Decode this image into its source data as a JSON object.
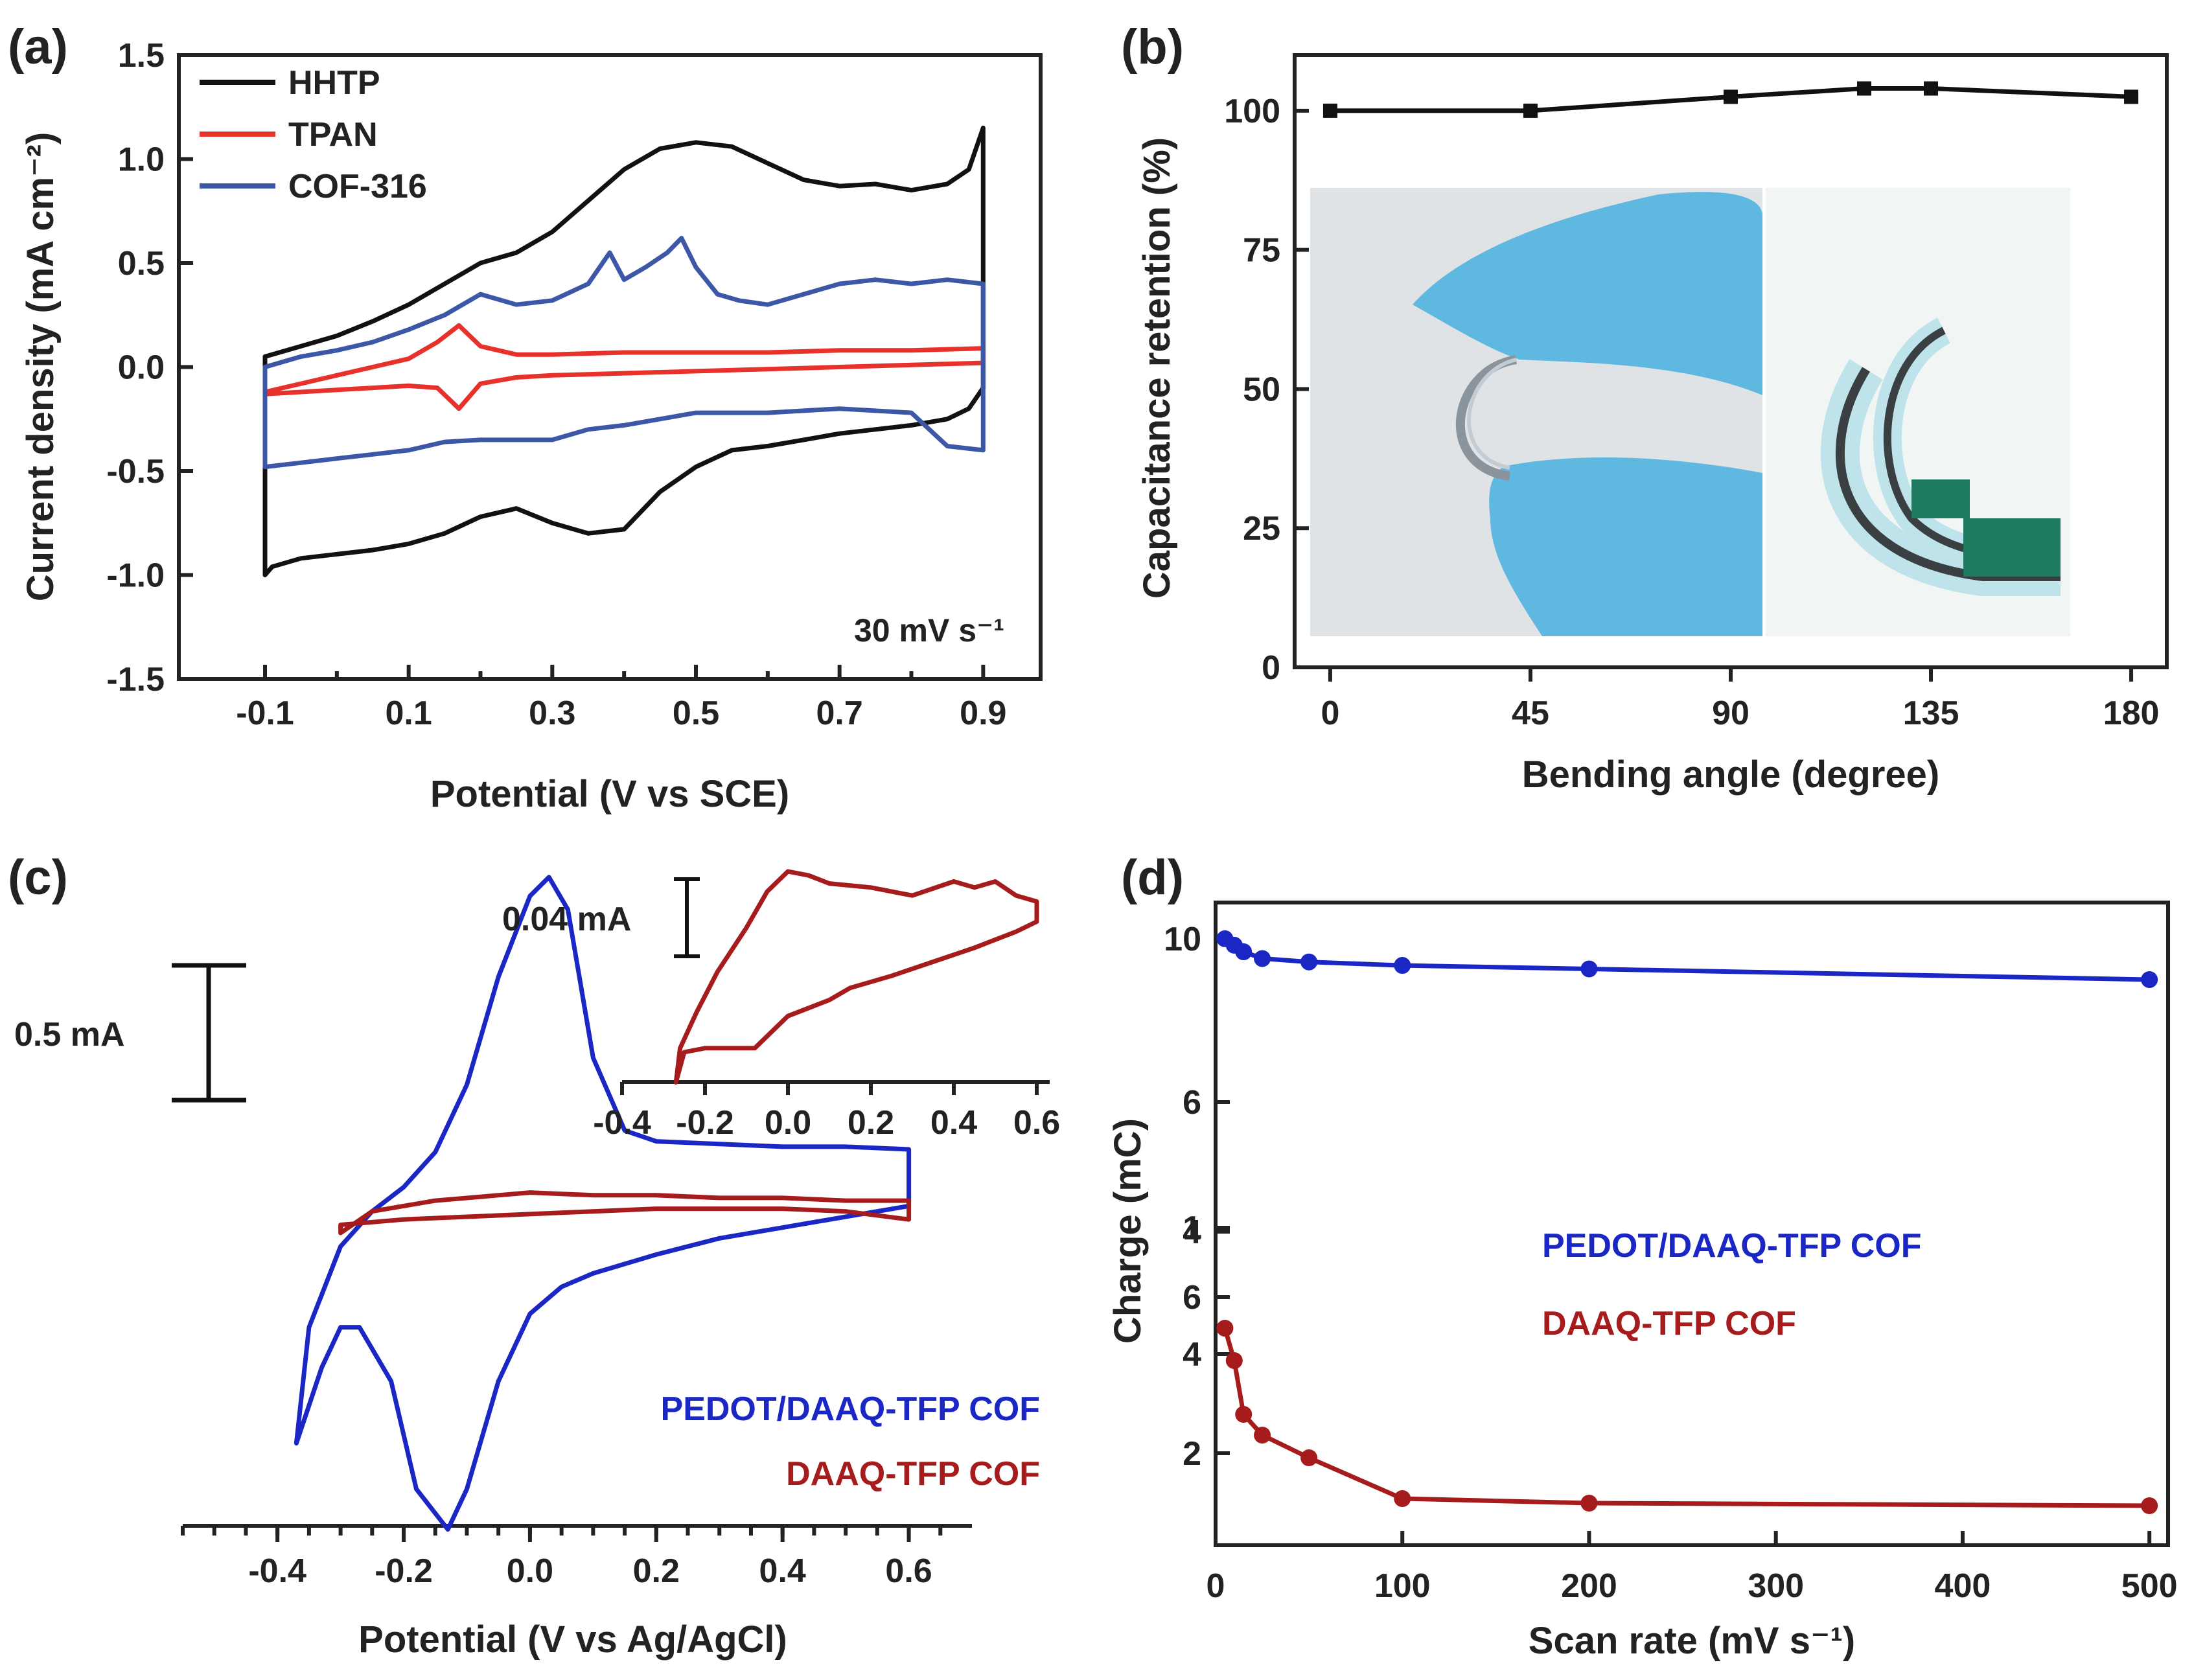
{
  "colors": {
    "black": "#111111",
    "red": "#e8312a",
    "blue": "#3d57a7",
    "pedot_blue": "#1a27c4",
    "daaq_red": "#a61c1c",
    "glove": "#5fb8e0",
    "photo_bg": "#dfe3e6"
  },
  "chart_data": [
    {
      "panel": "(a)",
      "type": "line",
      "xlabel": "Potential (V vs SCE)",
      "ylabel": "Current density (mA cm⁻²)",
      "xlim": [
        -0.22,
        0.98
      ],
      "ylim": [
        -1.5,
        1.5
      ],
      "xticks": [
        "-0.1",
        "0.1",
        "0.3",
        "0.5",
        "0.7",
        "0.9"
      ],
      "yticks": [
        "1.5",
        "1.0",
        "0.5",
        "0.0",
        "-0.5",
        "-1.0",
        "-1.5"
      ],
      "annotation": "30 mV s⁻¹",
      "legend": [
        "HHTP",
        "TPAN",
        "COF-316"
      ],
      "series": [
        {
          "name": "HHTP",
          "color": "#111111",
          "x": [
            -0.1,
            -0.05,
            0.0,
            0.05,
            0.1,
            0.15,
            0.2,
            0.25,
            0.3,
            0.35,
            0.4,
            0.45,
            0.5,
            0.55,
            0.6,
            0.65,
            0.7,
            0.75,
            0.8,
            0.85,
            0.88,
            0.9,
            0.9,
            0.88,
            0.85,
            0.8,
            0.75,
            0.7,
            0.65,
            0.6,
            0.55,
            0.5,
            0.45,
            0.4,
            0.35,
            0.3,
            0.25,
            0.2,
            0.15,
            0.1,
            0.05,
            0.0,
            -0.05,
            -0.09,
            -0.1,
            -0.1
          ],
          "y": [
            0.05,
            0.1,
            0.15,
            0.22,
            0.3,
            0.4,
            0.5,
            0.55,
            0.65,
            0.8,
            0.95,
            1.05,
            1.08,
            1.06,
            0.98,
            0.9,
            0.87,
            0.88,
            0.85,
            0.88,
            0.95,
            1.15,
            -0.1,
            -0.2,
            -0.25,
            -0.28,
            -0.3,
            -0.32,
            -0.35,
            -0.38,
            -0.4,
            -0.48,
            -0.6,
            -0.78,
            -0.8,
            -0.75,
            -0.68,
            -0.72,
            -0.8,
            -0.85,
            -0.88,
            -0.9,
            -0.92,
            -0.96,
            -1.0,
            0.05
          ]
        },
        {
          "name": "TPAN",
          "color": "#e8312a",
          "x": [
            -0.1,
            -0.05,
            0.0,
            0.05,
            0.1,
            0.14,
            0.17,
            0.2,
            0.25,
            0.3,
            0.4,
            0.5,
            0.6,
            0.7,
            0.8,
            0.9,
            0.9,
            0.8,
            0.7,
            0.6,
            0.5,
            0.4,
            0.3,
            0.25,
            0.2,
            0.17,
            0.14,
            0.1,
            0.05,
            0.0,
            -0.05,
            -0.1
          ],
          "y": [
            -0.12,
            -0.08,
            -0.04,
            0.0,
            0.04,
            0.12,
            0.2,
            0.1,
            0.06,
            0.06,
            0.07,
            0.07,
            0.07,
            0.08,
            0.08,
            0.09,
            0.02,
            0.01,
            0.0,
            -0.01,
            -0.02,
            -0.03,
            -0.04,
            -0.05,
            -0.08,
            -0.2,
            -0.1,
            -0.09,
            -0.1,
            -0.11,
            -0.12,
            -0.13
          ]
        },
        {
          "name": "COF-316",
          "color": "#3d57a7",
          "x": [
            -0.1,
            -0.05,
            0.0,
            0.05,
            0.1,
            0.15,
            0.2,
            0.25,
            0.3,
            0.35,
            0.38,
            0.4,
            0.43,
            0.46,
            0.48,
            0.5,
            0.53,
            0.56,
            0.6,
            0.65,
            0.7,
            0.75,
            0.8,
            0.85,
            0.9,
            0.9,
            0.85,
            0.8,
            0.7,
            0.6,
            0.5,
            0.45,
            0.4,
            0.35,
            0.3,
            0.2,
            0.15,
            0.1,
            0.05,
            0.0,
            -0.05,
            -0.1,
            -0.1
          ],
          "y": [
            0.0,
            0.05,
            0.08,
            0.12,
            0.18,
            0.25,
            0.35,
            0.3,
            0.32,
            0.4,
            0.55,
            0.42,
            0.48,
            0.55,
            0.62,
            0.48,
            0.35,
            0.32,
            0.3,
            0.35,
            0.4,
            0.42,
            0.4,
            0.42,
            0.4,
            -0.4,
            -0.38,
            -0.22,
            -0.2,
            -0.22,
            -0.22,
            -0.25,
            -0.28,
            -0.3,
            -0.35,
            -0.35,
            -0.36,
            -0.4,
            -0.42,
            -0.44,
            -0.46,
            -0.48,
            0.0
          ]
        }
      ]
    },
    {
      "panel": "(b)",
      "type": "line",
      "xlabel": "Bending angle (degree)",
      "ylabel": "Capacitance retention (%)",
      "xlim": [
        -8,
        188
      ],
      "ylim": [
        0,
        110
      ],
      "xticks": [
        "0",
        "45",
        "90",
        "135",
        "180"
      ],
      "yticks": [
        "0",
        "25",
        "50",
        "75",
        "100"
      ],
      "series": [
        {
          "name": "retention",
          "color": "#111111",
          "x": [
            0,
            45,
            90,
            120,
            135,
            180
          ],
          "y": [
            100,
            100,
            102.5,
            104,
            104,
            102.5
          ]
        }
      ]
    },
    {
      "panel": "(c)",
      "type": "line",
      "xlabel": "Potential (V vs Ag/AgCl)",
      "ylabel": "",
      "xlim": [
        -0.55,
        0.7
      ],
      "xticks": [
        "-0.4",
        "-0.2",
        "0.0",
        "0.2",
        "0.4",
        "0.6"
      ],
      "scalebar": "0.5 mA",
      "legend": [
        "PEDOT/DAAQ-TFP COF",
        "DAAQ-TFP COF"
      ],
      "series": [
        {
          "name": "PEDOT/DAAQ-TFP COF",
          "color": "#1a27c4",
          "x": [
            -0.37,
            -0.35,
            -0.3,
            -0.25,
            -0.2,
            -0.15,
            -0.1,
            -0.05,
            0.0,
            0.03,
            0.06,
            0.1,
            0.15,
            0.2,
            0.3,
            0.4,
            0.5,
            0.6,
            0.6,
            0.5,
            0.4,
            0.3,
            0.2,
            0.1,
            0.05,
            0.0,
            -0.05,
            -0.1,
            -0.13,
            -0.18,
            -0.22,
            -0.27,
            -0.3,
            -0.33,
            -0.37
          ],
          "y": [
            -0.78,
            -0.35,
            -0.05,
            0.08,
            0.17,
            0.3,
            0.55,
            0.95,
            1.25,
            1.32,
            1.2,
            0.65,
            0.38,
            0.34,
            0.33,
            0.32,
            0.32,
            0.31,
            0.1,
            0.06,
            0.02,
            -0.02,
            -0.08,
            -0.15,
            -0.2,
            -0.3,
            -0.55,
            -0.95,
            -1.1,
            -0.95,
            -0.55,
            -0.35,
            -0.35,
            -0.5,
            -0.78
          ]
        },
        {
          "name": "DAAQ-TFP COF",
          "color": "#a61c1c",
          "x": [
            -0.3,
            -0.25,
            -0.15,
            -0.05,
            0.0,
            0.1,
            0.2,
            0.3,
            0.4,
            0.5,
            0.6,
            0.6,
            0.5,
            0.4,
            0.3,
            0.2,
            0.1,
            0.0,
            -0.1,
            -0.2,
            -0.3,
            -0.3
          ],
          "y": [
            0.0,
            0.08,
            0.12,
            0.14,
            0.15,
            0.14,
            0.14,
            0.13,
            0.13,
            0.12,
            0.12,
            0.05,
            0.08,
            0.09,
            0.09,
            0.09,
            0.08,
            0.07,
            0.06,
            0.05,
            0.03,
            0.0
          ]
        }
      ],
      "inset": {
        "xlim": [
          -0.4,
          0.6
        ],
        "xticks": [
          "-0.4",
          "-0.2",
          "0.0",
          "0.2",
          "0.4",
          "0.6"
        ],
        "scalebar": "0.04 mA",
        "series": [
          {
            "name": "DAAQ-TFP COF",
            "color": "#a61c1c",
            "x": [
              -0.27,
              -0.26,
              -0.22,
              -0.17,
              -0.1,
              -0.05,
              0.0,
              0.05,
              0.1,
              0.2,
              0.3,
              0.4,
              0.45,
              0.5,
              0.55,
              0.6,
              0.6,
              0.55,
              0.45,
              0.35,
              0.25,
              0.15,
              0.1,
              0.05,
              0.0,
              -0.03,
              -0.08,
              -0.15,
              -0.2,
              -0.25,
              -0.27
            ],
            "y": [
              -0.05,
              0.12,
              0.3,
              0.5,
              0.72,
              0.9,
              1.0,
              0.98,
              0.94,
              0.92,
              0.88,
              0.95,
              0.92,
              0.95,
              0.88,
              0.85,
              0.75,
              0.7,
              0.62,
              0.55,
              0.48,
              0.42,
              0.36,
              0.32,
              0.28,
              0.22,
              0.12,
              0.12,
              0.12,
              0.1,
              -0.05
            ]
          }
        ]
      }
    },
    {
      "panel": "(d)",
      "type": "line",
      "xlabel": "Scan rate (mV s⁻¹)",
      "ylabel": "Charge (mC)",
      "xscale": "linear",
      "yscale": "log",
      "xlim": [
        0,
        510
      ],
      "ylim": [
        1.5,
        11.2
      ],
      "xticks": [
        "0",
        "100",
        "200",
        "300",
        "400",
        "500"
      ],
      "ytick_values": [
        2,
        4,
        6,
        10
      ],
      "ytick_labels": [
        "2",
        "4",
        "6",
        "10"
      ],
      "minor_y": [
        1,
        6
      ],
      "legend": [
        "PEDOT/DAAQ-TFP COF",
        "DAAQ-TFP COF"
      ],
      "extra_ylabels": [
        "1",
        "6",
        "4"
      ],
      "series": [
        {
          "name": "PEDOT/DAAQ-TFP COF",
          "color": "#1a27c4",
          "x": [
            5,
            10,
            15,
            25,
            50,
            100,
            200,
            500
          ],
          "y": [
            10.0,
            9.8,
            9.6,
            9.4,
            9.3,
            9.2,
            9.1,
            8.8
          ]
        },
        {
          "name": "DAAQ-TFP COF",
          "color": "#a61c1c",
          "x": [
            5,
            10,
            15,
            25,
            50,
            100,
            200,
            500
          ],
          "y": [
            5.0,
            4.0,
            2.7,
            2.3,
            1.95,
            1.62,
            1.58,
            1.56
          ]
        }
      ]
    }
  ]
}
